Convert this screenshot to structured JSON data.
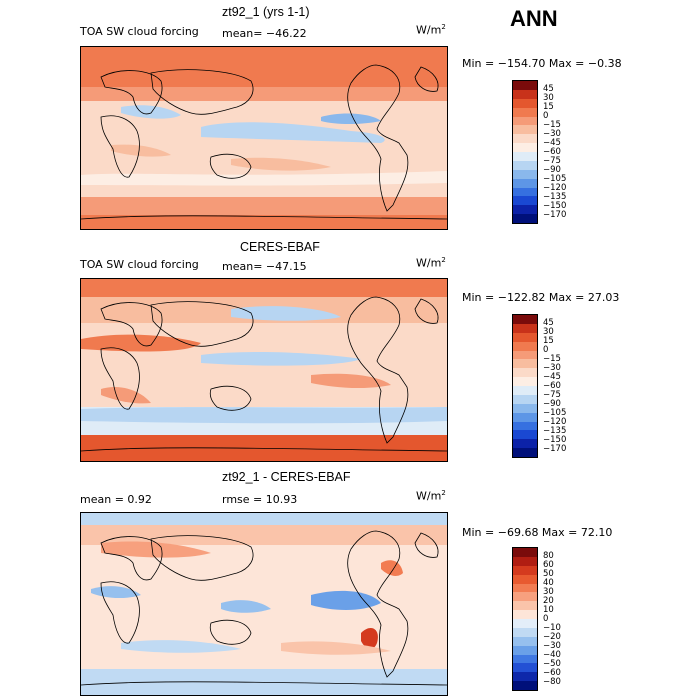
{
  "season": "ANN",
  "panels": [
    {
      "title": "zt92_1 (yrs 1-1)",
      "left_label": "TOA SW cloud forcing",
      "mean": "mean=  −46.22",
      "units": "W/m",
      "units_sup": "2",
      "minmax": "Min = −154.70  Max =   −0.38",
      "colorbar": {
        "labels": [
          "45",
          "30",
          "15",
          "0",
          "−15",
          "−30",
          "−45",
          "−60",
          "−75",
          "−90",
          "−105",
          "−120",
          "−135",
          "−150",
          "−170"
        ],
        "colors": [
          "#7a0b0b",
          "#c8321a",
          "#e4572e",
          "#f07a4f",
          "#f59b78",
          "#f8bd9f",
          "#fbdac8",
          "#fdeee4",
          "#dfecf7",
          "#b7d5f2",
          "#8ab8ec",
          "#5d96e6",
          "#3670e0",
          "#1a48d2",
          "#0c22a8",
          "#00107a"
        ]
      }
    },
    {
      "title": "CERES-EBAF",
      "left_label": "TOA SW cloud forcing",
      "mean": "mean=  −47.15",
      "units": "W/m",
      "units_sup": "2",
      "minmax": "Min = −122.82  Max =  27.03",
      "colorbar": {
        "labels": [
          "45",
          "30",
          "15",
          "0",
          "−15",
          "−30",
          "−45",
          "−60",
          "−75",
          "−90",
          "−105",
          "−120",
          "−135",
          "−150",
          "−170"
        ],
        "colors": [
          "#7a0b0b",
          "#c8321a",
          "#e4572e",
          "#f07a4f",
          "#f59b78",
          "#f8bd9f",
          "#fbdac8",
          "#fdeee4",
          "#dfecf7",
          "#b7d5f2",
          "#8ab8ec",
          "#5d96e6",
          "#3670e0",
          "#1a48d2",
          "#0c22a8",
          "#00107a"
        ]
      }
    },
    {
      "title": "zt92_1 - CERES-EBAF",
      "mean": "mean =     0.92",
      "rmse": "rmse =   10.93",
      "units": "W/m",
      "units_sup": "2",
      "minmax": "Min = −69.68  Max =  72.10",
      "colorbar": {
        "labels": [
          "80",
          "60",
          "50",
          "40",
          "30",
          "20",
          "10",
          "0",
          "−10",
          "−20",
          "−30",
          "−40",
          "−50",
          "−60",
          "−80"
        ],
        "colors": [
          "#7a0b0b",
          "#b01d12",
          "#d43a1e",
          "#e85a30",
          "#f27c52",
          "#f7a07e",
          "#fac4aa",
          "#fde5d8",
          "#e3eef9",
          "#c0daf3",
          "#96c0ee",
          "#6aa0e8",
          "#4078e2",
          "#2350d4",
          "#0e28aa",
          "#00107a"
        ]
      }
    }
  ]
}
